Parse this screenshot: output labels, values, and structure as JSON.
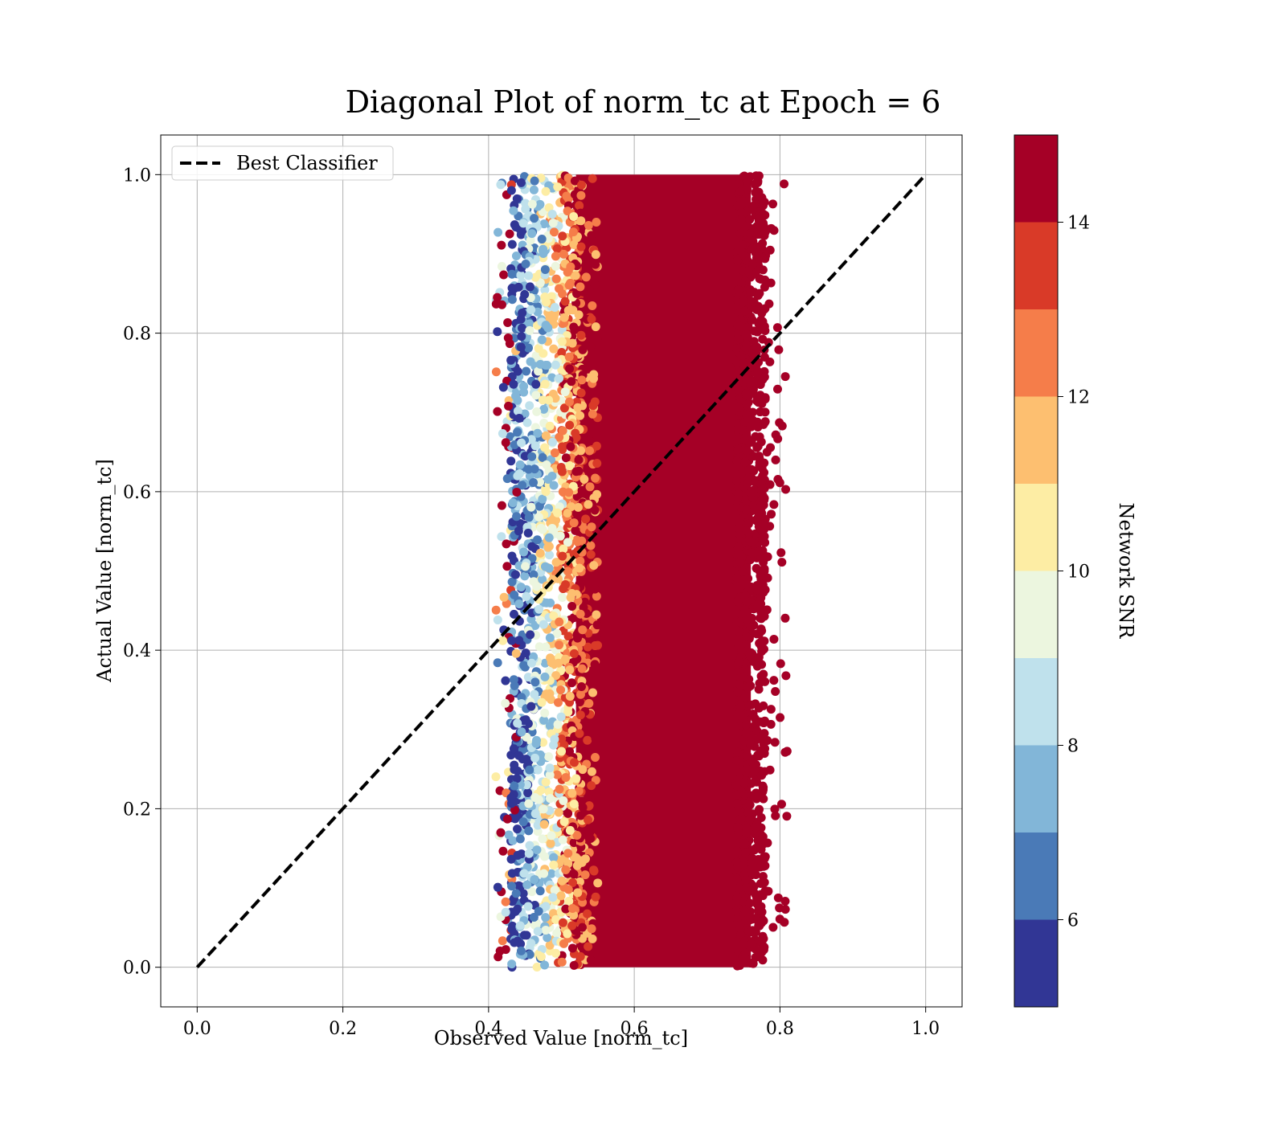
{
  "chart_data": {
    "type": "scatter",
    "title": "Diagonal Plot of norm_tc at Epoch = 6",
    "xlabel": "Observed Value [norm_tc]",
    "ylabel": "Actual Value [norm_tc]",
    "xlim": [
      -0.05,
      1.05
    ],
    "ylim": [
      -0.05,
      1.05
    ],
    "xticks": [
      "0.0",
      "0.2",
      "0.4",
      "0.6",
      "0.8",
      "1.0"
    ],
    "yticks": [
      "0.0",
      "0.2",
      "0.4",
      "0.6",
      "0.8",
      "1.0"
    ],
    "grid": true,
    "legend": {
      "placement": "top-left",
      "entries": [
        {
          "label": "Best Classifier",
          "style": "dashed",
          "color": "#000000"
        }
      ]
    },
    "reference_line": {
      "label": "Best Classifier",
      "x": [
        0.0,
        1.0
      ],
      "y": [
        0.0,
        1.0
      ]
    },
    "scatter_summary": {
      "observed_range": [
        0.41,
        0.81
      ],
      "actual_range": [
        0.0,
        1.0
      ],
      "dense_core_observed_range": [
        0.52,
        0.76
      ],
      "trend": "low-SNR points (blue/yellow) cluster at the left edge (observed 0.42-0.52); high-SNR points (dark red) dominate observed 0.52-0.77"
    },
    "colorbar": {
      "label": "Network SNR",
      "range": [
        5,
        15
      ],
      "ticks": [
        "6",
        "8",
        "10",
        "12",
        "14"
      ],
      "bins": [
        {
          "from": 5,
          "to": 6,
          "color": "#313695"
        },
        {
          "from": 6,
          "to": 7,
          "color": "#4a7ab7"
        },
        {
          "from": 7,
          "to": 8,
          "color": "#82b6d8"
        },
        {
          "from": 8,
          "to": 9,
          "color": "#bfe1ec"
        },
        {
          "from": 9,
          "to": 10,
          "color": "#ecf6df"
        },
        {
          "from": 10,
          "to": 11,
          "color": "#fdeda4"
        },
        {
          "from": 11,
          "to": 12,
          "color": "#fdbf70"
        },
        {
          "from": 12,
          "to": 13,
          "color": "#f57d4a"
        },
        {
          "from": 13,
          "to": 14,
          "color": "#d93a28"
        },
        {
          "from": 14,
          "to": 15,
          "color": "#a50026"
        }
      ]
    }
  }
}
